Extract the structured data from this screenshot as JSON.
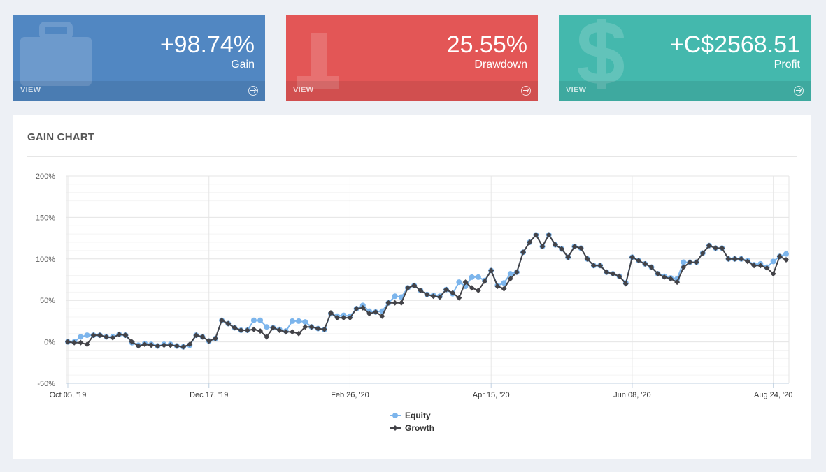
{
  "cards": {
    "gain": {
      "value": "+98.74%",
      "label": "Gain",
      "view": "VIEW",
      "color": "#5187c2",
      "icon": "briefcase-icon"
    },
    "drawdown": {
      "value": "25.55%",
      "label": "Drawdown",
      "view": "VIEW",
      "color": "#e35656",
      "icon": "trend-down-icon"
    },
    "profit": {
      "value": "+C$2568.51",
      "label": "Profit",
      "view": "VIEW",
      "color": "#44b8ad",
      "icon": "dollar-icon"
    }
  },
  "panel": {
    "title": "GAIN CHART"
  },
  "chart_data": {
    "type": "line",
    "title": "GAIN CHART",
    "xlabel": "",
    "ylabel": "",
    "ylim": [
      -50,
      200
    ],
    "yticks": [
      -50,
      0,
      50,
      100,
      150,
      200
    ],
    "ytick_labels": [
      "-50%",
      "0%",
      "50%",
      "100%",
      "150%",
      "200%"
    ],
    "xticks": [
      {
        "index": 0,
        "label": "Oct 05, '19"
      },
      {
        "index": 22,
        "label": "Dec 17, '19"
      },
      {
        "index": 44,
        "label": "Feb 26, '20"
      },
      {
        "index": 66,
        "label": "Apr 15, '20"
      },
      {
        "index": 88,
        "label": "Jun 08, '20"
      },
      {
        "index": 110,
        "label": "Aug 24, '20"
      }
    ],
    "legend_position": "bottom-center",
    "series": [
      {
        "name": "Equity",
        "color": "#7cb5ec",
        "marker": "circle",
        "values": [
          0,
          0,
          6,
          8,
          8,
          8,
          6,
          6,
          9,
          8,
          -1,
          -4,
          -2,
          -3,
          -5,
          -3,
          -3,
          -5,
          -6,
          -4,
          8,
          6,
          1,
          4,
          26,
          22,
          17,
          14,
          14,
          26,
          26,
          18,
          17,
          15,
          13,
          25,
          25,
          24,
          18,
          16,
          15,
          34,
          31,
          32,
          31,
          40,
          44,
          37,
          36,
          37,
          47,
          55,
          54,
          65,
          68,
          62,
          57,
          56,
          55,
          63,
          58,
          72,
          67,
          78,
          78,
          74,
          86,
          68,
          71,
          82,
          84,
          108,
          120,
          129,
          115,
          129,
          117,
          112,
          102,
          115,
          113,
          100,
          92,
          92,
          84,
          82,
          79,
          71,
          102,
          98,
          94,
          90,
          82,
          79,
          77,
          76,
          96,
          96,
          96,
          107,
          116,
          113,
          113,
          100,
          100,
          100,
          98,
          93,
          94,
          90,
          97,
          103,
          106
        ]
      },
      {
        "name": "Growth",
        "color": "#434348",
        "marker": "diamond",
        "values": [
          0,
          -1,
          -1,
          -3,
          8,
          8,
          6,
          5,
          9,
          8,
          0,
          -5,
          -3,
          -4,
          -5,
          -4,
          -4,
          -5,
          -6,
          -3,
          8,
          6,
          1,
          4,
          26,
          22,
          17,
          14,
          14,
          15,
          13,
          6,
          17,
          14,
          12,
          12,
          10,
          18,
          18,
          16,
          15,
          35,
          29,
          29,
          29,
          40,
          41,
          34,
          36,
          31,
          47,
          47,
          47,
          65,
          68,
          62,
          57,
          55,
          54,
          63,
          59,
          53,
          72,
          65,
          62,
          73,
          86,
          67,
          64,
          76,
          84,
          108,
          120,
          129,
          115,
          129,
          117,
          112,
          102,
          115,
          113,
          100,
          92,
          92,
          84,
          82,
          79,
          70,
          102,
          98,
          94,
          90,
          82,
          78,
          76,
          72,
          90,
          96,
          96,
          107,
          116,
          113,
          113,
          100,
          100,
          100,
          97,
          92,
          92,
          89,
          82,
          103,
          99
        ]
      }
    ]
  }
}
